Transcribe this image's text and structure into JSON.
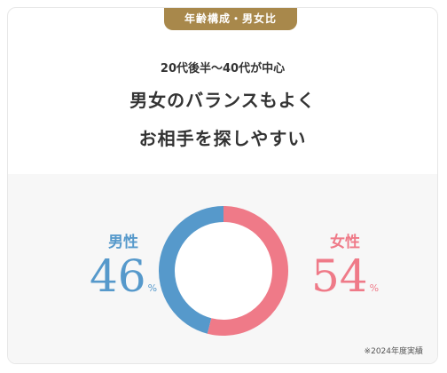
{
  "badge": "年齢構成・男女比",
  "subtitle": "20代後半～40代が中心",
  "headline": [
    "男女のバランスもよく",
    "お相手を探しやすい"
  ],
  "male": {
    "label": "男性",
    "value": "46",
    "unit": "%"
  },
  "female": {
    "label": "女性",
    "value": "54",
    "unit": "%"
  },
  "note": "※2024年度実績",
  "colors": {
    "male": "#5699cb",
    "female": "#ef7a88",
    "badge": "#a8884b"
  },
  "chart_data": {
    "type": "pie",
    "categories": [
      "男性",
      "女性"
    ],
    "values": [
      46,
      54
    ]
  }
}
